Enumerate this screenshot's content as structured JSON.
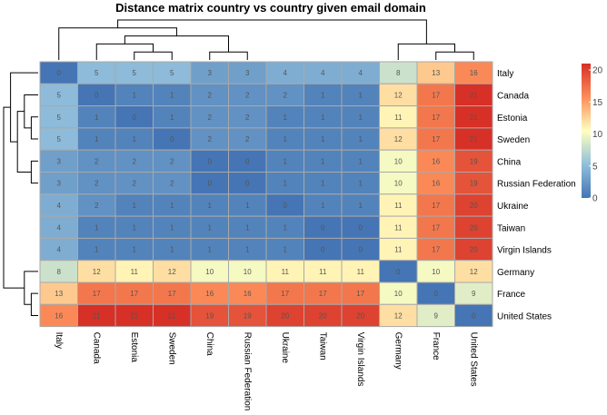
{
  "chart_data": {
    "type": "heatmap",
    "title": "Distance matrix country vs country given email domain",
    "rows": [
      "Italy",
      "Canada",
      "Estonia",
      "Sweden",
      "China",
      "Russian Federation",
      "Ukraine",
      "Taiwan",
      "Virgin Islands",
      "Germany",
      "France",
      "United States"
    ],
    "columns": [
      "Italy",
      "Canada",
      "Estonia",
      "Sweden",
      "China",
      "Russian Federation",
      "Ukraine",
      "Taiwan",
      "Virgin Islands",
      "Germany",
      "France",
      "United States"
    ],
    "values": [
      [
        0,
        5,
        5,
        5,
        3,
        3,
        4,
        4,
        4,
        8,
        13,
        16
      ],
      [
        5,
        0,
        1,
        1,
        2,
        2,
        2,
        1,
        1,
        12,
        17,
        21
      ],
      [
        5,
        1,
        0,
        1,
        2,
        2,
        1,
        1,
        1,
        11,
        17,
        21
      ],
      [
        5,
        1,
        1,
        0,
        2,
        2,
        1,
        1,
        1,
        12,
        17,
        21
      ],
      [
        3,
        2,
        2,
        2,
        0,
        0,
        1,
        1,
        1,
        10,
        16,
        19
      ],
      [
        3,
        2,
        2,
        2,
        0,
        0,
        1,
        1,
        1,
        10,
        16,
        19
      ],
      [
        4,
        2,
        1,
        1,
        1,
        1,
        0,
        1,
        1,
        11,
        17,
        20
      ],
      [
        4,
        1,
        1,
        1,
        1,
        1,
        1,
        0,
        0,
        11,
        17,
        20
      ],
      [
        4,
        1,
        1,
        1,
        1,
        1,
        1,
        0,
        0,
        11,
        17,
        20
      ],
      [
        8,
        12,
        11,
        12,
        10,
        10,
        11,
        11,
        11,
        0,
        10,
        12
      ],
      [
        13,
        17,
        17,
        17,
        16,
        16,
        17,
        17,
        17,
        10,
        0,
        9
      ],
      [
        16,
        21,
        21,
        21,
        19,
        19,
        20,
        20,
        20,
        12,
        9,
        0
      ]
    ],
    "colorbar": {
      "min": 0,
      "max": 21,
      "ticks": [
        0,
        5,
        10,
        15,
        20
      ],
      "colors": [
        "#4575b4",
        "#91bfdb",
        "#ffffbf",
        "#fc8d59",
        "#d73027"
      ]
    },
    "legend_position": "right",
    "dendrogram": {
      "rows": true,
      "columns": true
    }
  }
}
